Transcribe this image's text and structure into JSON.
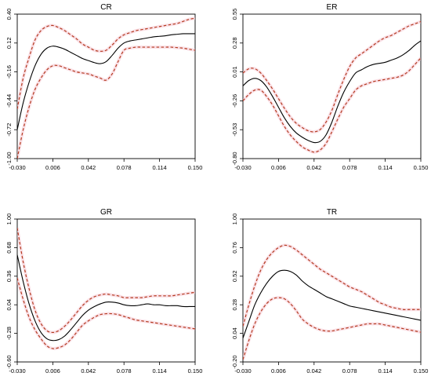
{
  "chart_data": [
    {
      "type": "line",
      "title": "CR",
      "xlim": [
        -0.03,
        0.15
      ],
      "ylim": [
        -1.0,
        0.4
      ],
      "xticks": [
        "-0.030",
        "0.006",
        "0.042",
        "0.078",
        "0.114",
        "0.150"
      ],
      "yticks": [
        "-1.00",
        "-0.72",
        "-0.44",
        "-0.16",
        "0.12",
        "0.40"
      ],
      "grid": false,
      "series": [
        {
          "role": "estimate",
          "style": "solid",
          "color": "#000000",
          "x": [
            -0.03,
            -0.024,
            -0.018,
            -0.012,
            -0.006,
            0.0,
            0.006,
            0.012,
            0.018,
            0.024,
            0.03,
            0.036,
            0.042,
            0.048,
            0.054,
            0.06,
            0.066,
            0.072,
            0.078,
            0.084,
            0.09,
            0.096,
            0.102,
            0.108,
            0.114,
            0.12,
            0.126,
            0.132,
            0.138,
            0.144,
            0.15
          ],
          "y": [
            -0.72,
            -0.46,
            -0.26,
            -0.1,
            0.01,
            0.07,
            0.09,
            0.08,
            0.06,
            0.03,
            0.0,
            -0.03,
            -0.05,
            -0.07,
            -0.08,
            -0.06,
            0.0,
            0.07,
            0.12,
            0.14,
            0.15,
            0.16,
            0.17,
            0.18,
            0.185,
            0.19,
            0.2,
            0.205,
            0.21,
            0.21,
            0.21
          ]
        },
        {
          "role": "upper band",
          "style": "dashed",
          "color": "#b33a1f",
          "x": [
            -0.03,
            -0.024,
            -0.018,
            -0.012,
            -0.006,
            0.0,
            0.006,
            0.012,
            0.018,
            0.024,
            0.03,
            0.036,
            0.042,
            0.048,
            0.054,
            0.06,
            0.066,
            0.072,
            0.078,
            0.084,
            0.09,
            0.096,
            0.102,
            0.108,
            0.114,
            0.12,
            0.126,
            0.132,
            0.138,
            0.144,
            0.15
          ],
          "y": [
            -0.52,
            -0.22,
            -0.02,
            0.15,
            0.24,
            0.28,
            0.29,
            0.27,
            0.24,
            0.2,
            0.16,
            0.11,
            0.08,
            0.05,
            0.04,
            0.05,
            0.1,
            0.16,
            0.2,
            0.22,
            0.24,
            0.25,
            0.26,
            0.27,
            0.28,
            0.29,
            0.3,
            0.31,
            0.33,
            0.35,
            0.36
          ]
        },
        {
          "role": "lower band",
          "style": "dashed",
          "color": "#b33a1f",
          "x": [
            -0.03,
            -0.024,
            -0.018,
            -0.012,
            -0.006,
            0.0,
            0.006,
            0.012,
            0.018,
            0.024,
            0.03,
            0.036,
            0.042,
            0.048,
            0.054,
            0.06,
            0.066,
            0.072,
            0.078,
            0.084,
            0.09,
            0.096,
            0.102,
            0.108,
            0.114,
            0.12,
            0.126,
            0.132,
            0.138,
            0.144,
            0.15
          ],
          "y": [
            -1.0,
            -0.72,
            -0.5,
            -0.33,
            -0.22,
            -0.14,
            -0.1,
            -0.1,
            -0.12,
            -0.14,
            -0.16,
            -0.17,
            -0.18,
            -0.2,
            -0.22,
            -0.24,
            -0.18,
            -0.06,
            0.05,
            0.07,
            0.08,
            0.08,
            0.08,
            0.08,
            0.08,
            0.08,
            0.08,
            0.075,
            0.07,
            0.06,
            0.05
          ]
        }
      ]
    },
    {
      "type": "line",
      "title": "ER",
      "xlim": [
        -0.03,
        0.15
      ],
      "ylim": [
        -0.8,
        0.55
      ],
      "xticks": [
        "-0.030",
        "0.006",
        "0.042",
        "0.078",
        "0.114",
        "0.150"
      ],
      "yticks": [
        "-0.80",
        "-0.53",
        "-0.26",
        "0.01",
        "0.28",
        "0.55"
      ],
      "grid": false,
      "series": [
        {
          "role": "estimate",
          "style": "solid",
          "color": "#000000",
          "x": [
            -0.03,
            -0.024,
            -0.018,
            -0.012,
            -0.006,
            0.0,
            0.006,
            0.012,
            0.018,
            0.024,
            0.03,
            0.036,
            0.042,
            0.048,
            0.054,
            0.06,
            0.066,
            0.072,
            0.078,
            0.084,
            0.09,
            0.096,
            0.102,
            0.108,
            0.114,
            0.12,
            0.126,
            0.132,
            0.138,
            0.144,
            0.15
          ],
          "y": [
            -0.12,
            -0.07,
            -0.05,
            -0.07,
            -0.13,
            -0.22,
            -0.32,
            -0.42,
            -0.5,
            -0.56,
            -0.6,
            -0.63,
            -0.65,
            -0.64,
            -0.58,
            -0.46,
            -0.31,
            -0.18,
            -0.08,
            0.0,
            0.03,
            0.06,
            0.08,
            0.09,
            0.1,
            0.12,
            0.14,
            0.17,
            0.21,
            0.26,
            0.3
          ]
        },
        {
          "role": "upper band",
          "style": "dashed",
          "color": "#b33a1f",
          "x": [
            -0.03,
            -0.024,
            -0.018,
            -0.012,
            -0.006,
            0.0,
            0.006,
            0.012,
            0.018,
            0.024,
            0.03,
            0.036,
            0.042,
            0.048,
            0.054,
            0.06,
            0.066,
            0.072,
            0.078,
            0.084,
            0.09,
            0.096,
            0.102,
            0.108,
            0.114,
            0.12,
            0.126,
            0.132,
            0.138,
            0.144,
            0.15
          ],
          "y": [
            0.0,
            0.04,
            0.04,
            0.0,
            -0.07,
            -0.15,
            -0.24,
            -0.33,
            -0.41,
            -0.47,
            -0.51,
            -0.54,
            -0.55,
            -0.53,
            -0.46,
            -0.35,
            -0.2,
            -0.06,
            0.06,
            0.14,
            0.18,
            0.22,
            0.26,
            0.3,
            0.33,
            0.35,
            0.38,
            0.41,
            0.44,
            0.46,
            0.48
          ]
        },
        {
          "role": "lower band",
          "style": "dashed",
          "color": "#b33a1f",
          "x": [
            -0.03,
            -0.024,
            -0.018,
            -0.012,
            -0.006,
            0.0,
            0.006,
            0.012,
            0.018,
            0.024,
            0.03,
            0.036,
            0.042,
            0.048,
            0.054,
            0.06,
            0.066,
            0.072,
            0.078,
            0.084,
            0.09,
            0.096,
            0.102,
            0.108,
            0.114,
            0.12,
            0.126,
            0.132,
            0.138,
            0.144,
            0.15
          ],
          "y": [
            -0.26,
            -0.2,
            -0.16,
            -0.16,
            -0.22,
            -0.3,
            -0.4,
            -0.5,
            -0.58,
            -0.64,
            -0.69,
            -0.72,
            -0.74,
            -0.72,
            -0.66,
            -0.55,
            -0.43,
            -0.32,
            -0.24,
            -0.16,
            -0.12,
            -0.1,
            -0.08,
            -0.07,
            -0.06,
            -0.05,
            -0.04,
            -0.02,
            0.02,
            0.08,
            0.14
          ]
        }
      ]
    },
    {
      "type": "line",
      "title": "GR",
      "xlim": [
        -0.03,
        0.15
      ],
      "ylim": [
        -0.6,
        1.0
      ],
      "xticks": [
        "-0.030",
        "0.006",
        "0.042",
        "0.078",
        "0.114",
        "0.150"
      ],
      "yticks": [
        "-0.60",
        "-0.28",
        "0.04",
        "0.36",
        "0.68",
        "1.00"
      ],
      "grid": false,
      "series": [
        {
          "role": "estimate",
          "style": "solid",
          "color": "#000000",
          "x": [
            -0.03,
            -0.024,
            -0.018,
            -0.012,
            -0.006,
            0.0,
            0.006,
            0.012,
            0.018,
            0.024,
            0.03,
            0.036,
            0.042,
            0.048,
            0.054,
            0.06,
            0.066,
            0.072,
            0.078,
            0.084,
            0.09,
            0.096,
            0.102,
            0.108,
            0.114,
            0.12,
            0.126,
            0.132,
            0.138,
            0.144,
            0.15
          ],
          "y": [
            0.6,
            0.3,
            0.05,
            -0.14,
            -0.27,
            -0.34,
            -0.36,
            -0.35,
            -0.31,
            -0.24,
            -0.16,
            -0.08,
            -0.02,
            0.02,
            0.05,
            0.07,
            0.07,
            0.06,
            0.04,
            0.03,
            0.03,
            0.04,
            0.05,
            0.04,
            0.04,
            0.03,
            0.03,
            0.03,
            0.02,
            0.02,
            0.02
          ]
        },
        {
          "role": "upper band",
          "style": "dashed",
          "color": "#b33a1f",
          "x": [
            -0.03,
            -0.024,
            -0.018,
            -0.012,
            -0.006,
            0.0,
            0.006,
            0.012,
            0.018,
            0.024,
            0.03,
            0.036,
            0.042,
            0.048,
            0.054,
            0.06,
            0.066,
            0.072,
            0.078,
            0.084,
            0.09,
            0.096,
            0.102,
            0.108,
            0.114,
            0.12,
            0.126,
            0.132,
            0.138,
            0.144,
            0.15
          ],
          "y": [
            0.9,
            0.52,
            0.22,
            -0.02,
            -0.17,
            -0.25,
            -0.27,
            -0.25,
            -0.2,
            -0.13,
            -0.05,
            0.03,
            0.09,
            0.13,
            0.15,
            0.16,
            0.15,
            0.14,
            0.12,
            0.12,
            0.12,
            0.12,
            0.13,
            0.14,
            0.14,
            0.14,
            0.14,
            0.15,
            0.16,
            0.17,
            0.18
          ]
        },
        {
          "role": "lower band",
          "style": "dashed",
          "color": "#b33a1f",
          "x": [
            -0.03,
            -0.024,
            -0.018,
            -0.012,
            -0.006,
            0.0,
            0.006,
            0.012,
            0.018,
            0.024,
            0.03,
            0.036,
            0.042,
            0.048,
            0.054,
            0.06,
            0.066,
            0.072,
            0.078,
            0.084,
            0.09,
            0.096,
            0.102,
            0.108,
            0.114,
            0.12,
            0.126,
            0.132,
            0.138,
            0.144,
            0.15
          ],
          "y": [
            0.34,
            0.1,
            -0.1,
            -0.24,
            -0.34,
            -0.42,
            -0.45,
            -0.44,
            -0.41,
            -0.35,
            -0.27,
            -0.19,
            -0.14,
            -0.1,
            -0.07,
            -0.06,
            -0.06,
            -0.07,
            -0.09,
            -0.11,
            -0.13,
            -0.14,
            -0.15,
            -0.16,
            -0.17,
            -0.18,
            -0.19,
            -0.2,
            -0.21,
            -0.22,
            -0.23
          ]
        }
      ]
    },
    {
      "type": "line",
      "title": "TR",
      "xlim": [
        -0.03,
        0.15
      ],
      "ylim": [
        -0.2,
        1.0
      ],
      "xticks": [
        "-0.030",
        "0.006",
        "0.042",
        "0.078",
        "0.114",
        "0.150"
      ],
      "yticks": [
        "-0.20",
        "0.04",
        "0.28",
        "0.52",
        "0.76",
        "1.00"
      ],
      "grid": false,
      "series": [
        {
          "role": "estimate",
          "style": "solid",
          "color": "#000000",
          "x": [
            -0.03,
            -0.024,
            -0.018,
            -0.012,
            -0.006,
            0.0,
            0.006,
            0.012,
            0.018,
            0.024,
            0.03,
            0.036,
            0.042,
            0.048,
            0.054,
            0.06,
            0.066,
            0.072,
            0.078,
            0.084,
            0.09,
            0.096,
            0.102,
            0.108,
            0.114,
            0.12,
            0.126,
            0.132,
            0.138,
            0.144,
            0.15
          ],
          "y": [
            0.0,
            0.14,
            0.28,
            0.38,
            0.46,
            0.52,
            0.56,
            0.57,
            0.56,
            0.53,
            0.48,
            0.44,
            0.41,
            0.38,
            0.35,
            0.33,
            0.31,
            0.29,
            0.27,
            0.26,
            0.25,
            0.24,
            0.23,
            0.22,
            0.21,
            0.2,
            0.19,
            0.18,
            0.17,
            0.16,
            0.15
          ]
        },
        {
          "role": "upper band",
          "style": "dashed",
          "color": "#b33a1f",
          "x": [
            -0.03,
            -0.024,
            -0.018,
            -0.012,
            -0.006,
            0.0,
            0.006,
            0.012,
            0.018,
            0.024,
            0.03,
            0.036,
            0.042,
            0.048,
            0.054,
            0.06,
            0.066,
            0.072,
            0.078,
            0.084,
            0.09,
            0.096,
            0.102,
            0.108,
            0.114,
            0.12,
            0.126,
            0.132,
            0.138,
            0.144,
            0.15
          ],
          "y": [
            0.1,
            0.28,
            0.44,
            0.57,
            0.66,
            0.72,
            0.76,
            0.78,
            0.77,
            0.74,
            0.7,
            0.66,
            0.62,
            0.58,
            0.55,
            0.52,
            0.49,
            0.46,
            0.43,
            0.41,
            0.39,
            0.36,
            0.33,
            0.3,
            0.28,
            0.26,
            0.25,
            0.24,
            0.24,
            0.24,
            0.24
          ]
        },
        {
          "role": "lower band",
          "style": "dashed",
          "color": "#b33a1f",
          "x": [
            -0.03,
            -0.024,
            -0.018,
            -0.012,
            -0.006,
            0.0,
            0.006,
            0.012,
            0.018,
            0.024,
            0.03,
            0.036,
            0.042,
            0.048,
            0.054,
            0.06,
            0.066,
            0.072,
            0.078,
            0.084,
            0.09,
            0.096,
            0.102,
            0.108,
            0.114,
            0.12,
            0.126,
            0.132,
            0.138,
            0.144,
            0.15
          ],
          "y": [
            -0.18,
            -0.02,
            0.12,
            0.22,
            0.29,
            0.33,
            0.34,
            0.33,
            0.29,
            0.23,
            0.16,
            0.12,
            0.09,
            0.07,
            0.06,
            0.06,
            0.07,
            0.08,
            0.09,
            0.1,
            0.11,
            0.12,
            0.12,
            0.12,
            0.11,
            0.1,
            0.09,
            0.08,
            0.07,
            0.06,
            0.05
          ]
        }
      ]
    }
  ]
}
